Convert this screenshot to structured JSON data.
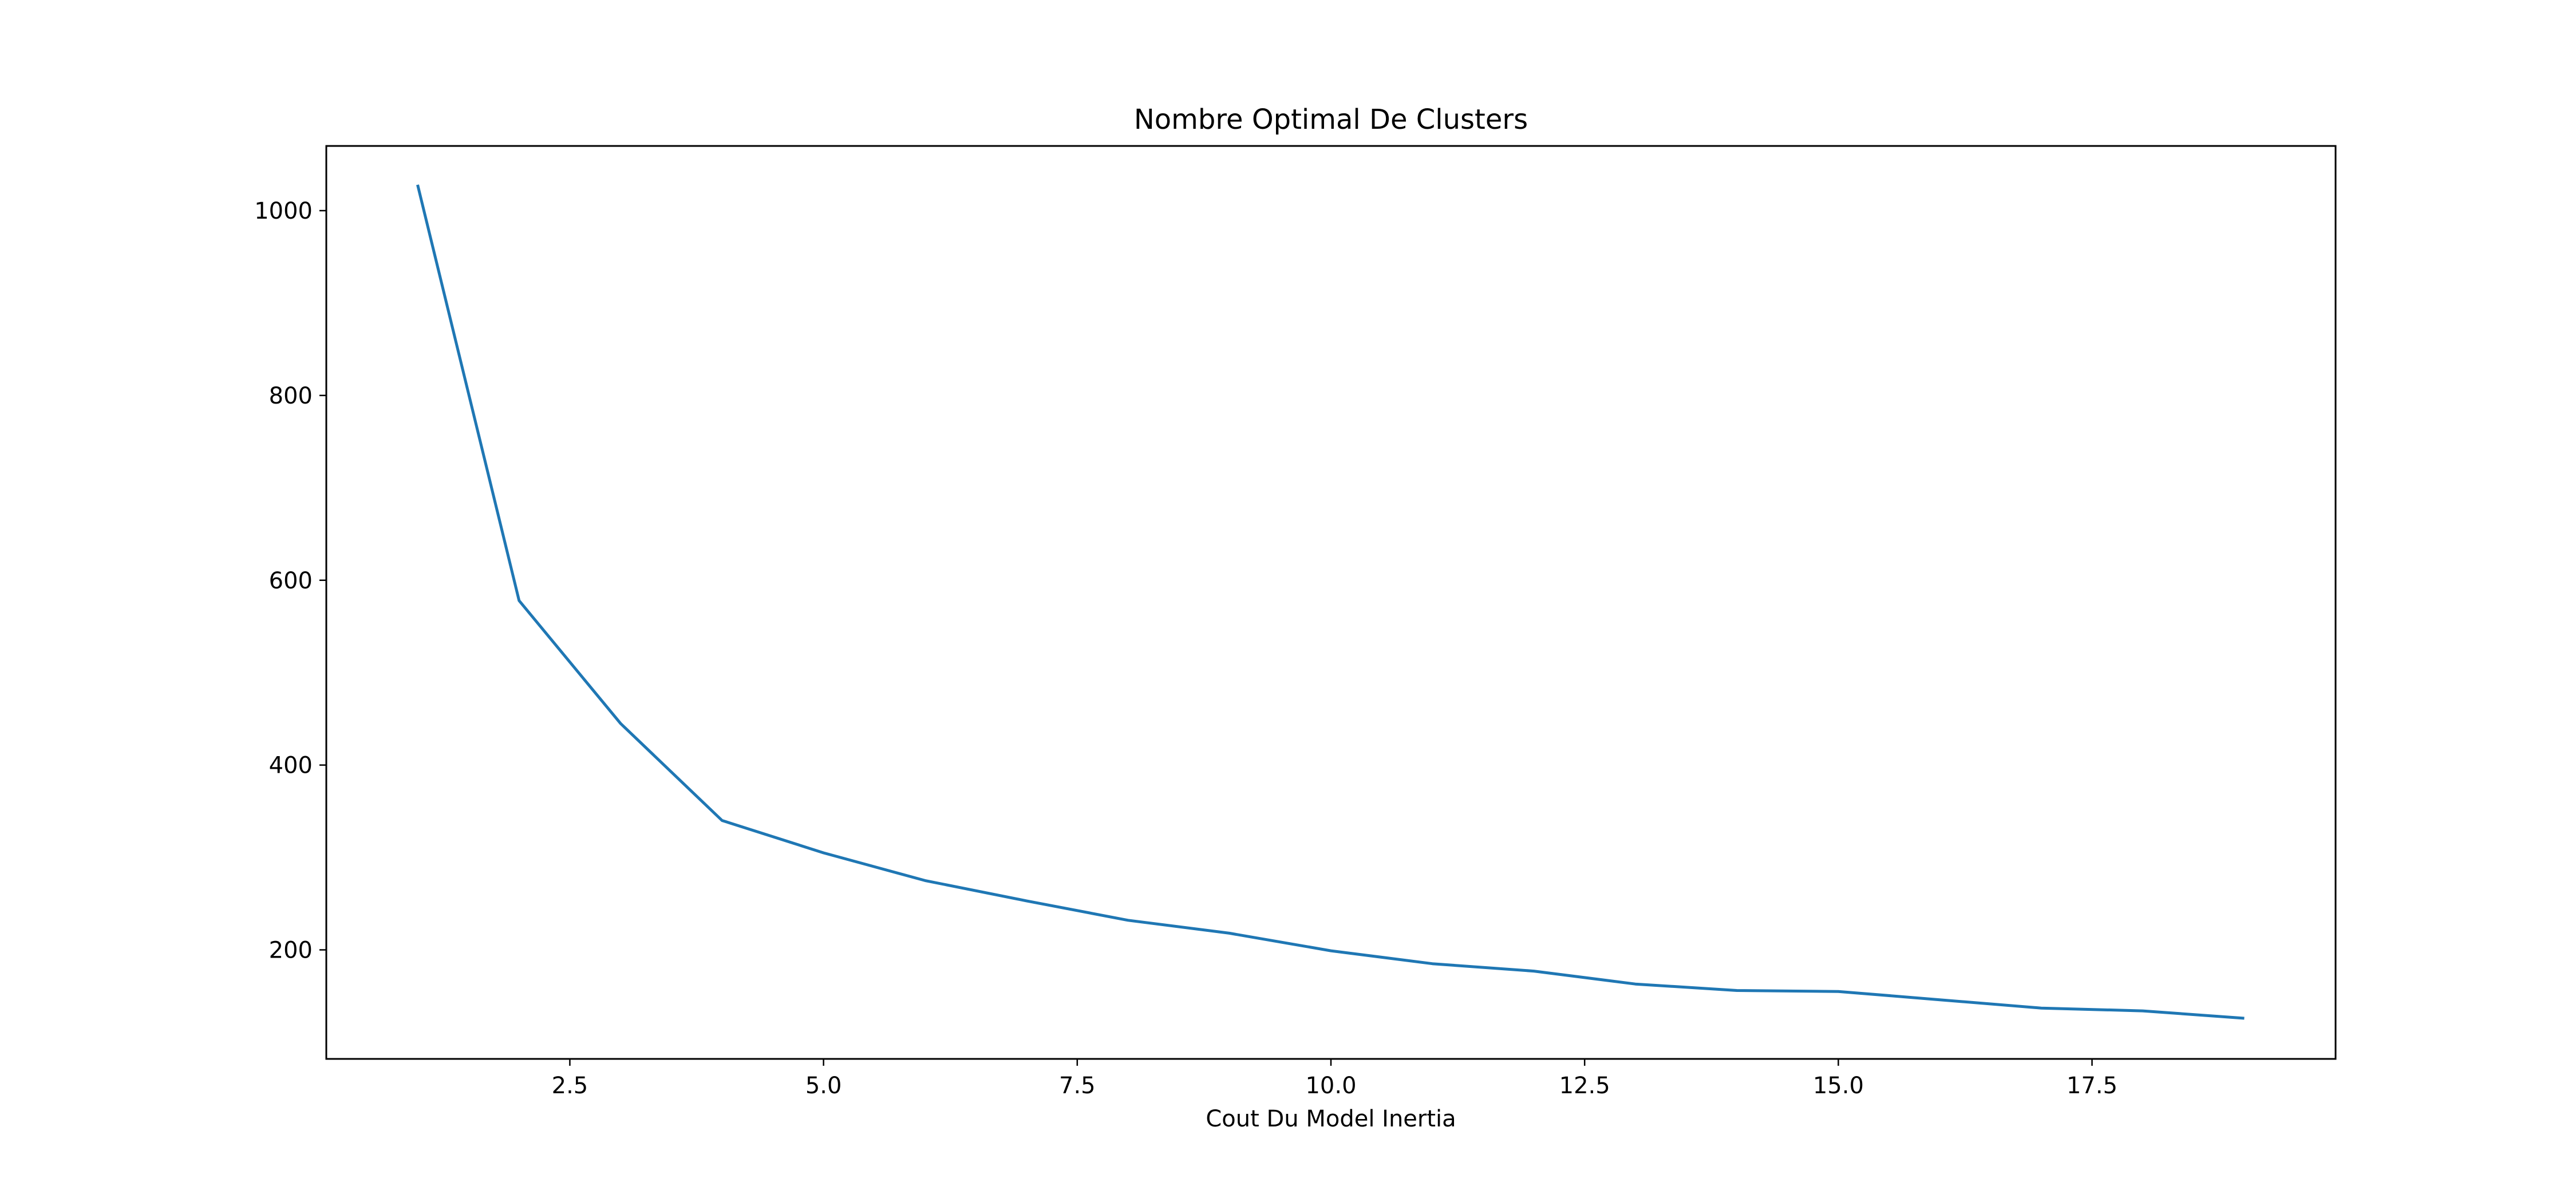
{
  "chart_data": {
    "type": "line",
    "title": "Nombre Optimal De Clusters",
    "xlabel": "Cout Du Model Inertia",
    "ylabel": "",
    "xlim": [
      0.1,
      19.9
    ],
    "ylim": [
      82,
      1070
    ],
    "xticks": [
      2.5,
      5.0,
      7.5,
      10.0,
      12.5,
      15.0,
      17.5
    ],
    "xtick_labels": [
      "2.5",
      "5.0",
      "7.5",
      "10.0",
      "12.5",
      "15.0",
      "17.5"
    ],
    "yticks": [
      200,
      400,
      600,
      800,
      1000
    ],
    "ytick_labels": [
      "200",
      "400",
      "600",
      "800",
      "1000"
    ],
    "grid": false,
    "legend": false,
    "series_color": "#1f77b4",
    "x": [
      1,
      2,
      3,
      4,
      5,
      6,
      7,
      8,
      9,
      10,
      11,
      12,
      13,
      14,
      15,
      16,
      17,
      18,
      19
    ],
    "y": [
      1028,
      578,
      445,
      340,
      305,
      275,
      253,
      232,
      218,
      199,
      185,
      177,
      163,
      156,
      155,
      146,
      137,
      134,
      126
    ]
  }
}
